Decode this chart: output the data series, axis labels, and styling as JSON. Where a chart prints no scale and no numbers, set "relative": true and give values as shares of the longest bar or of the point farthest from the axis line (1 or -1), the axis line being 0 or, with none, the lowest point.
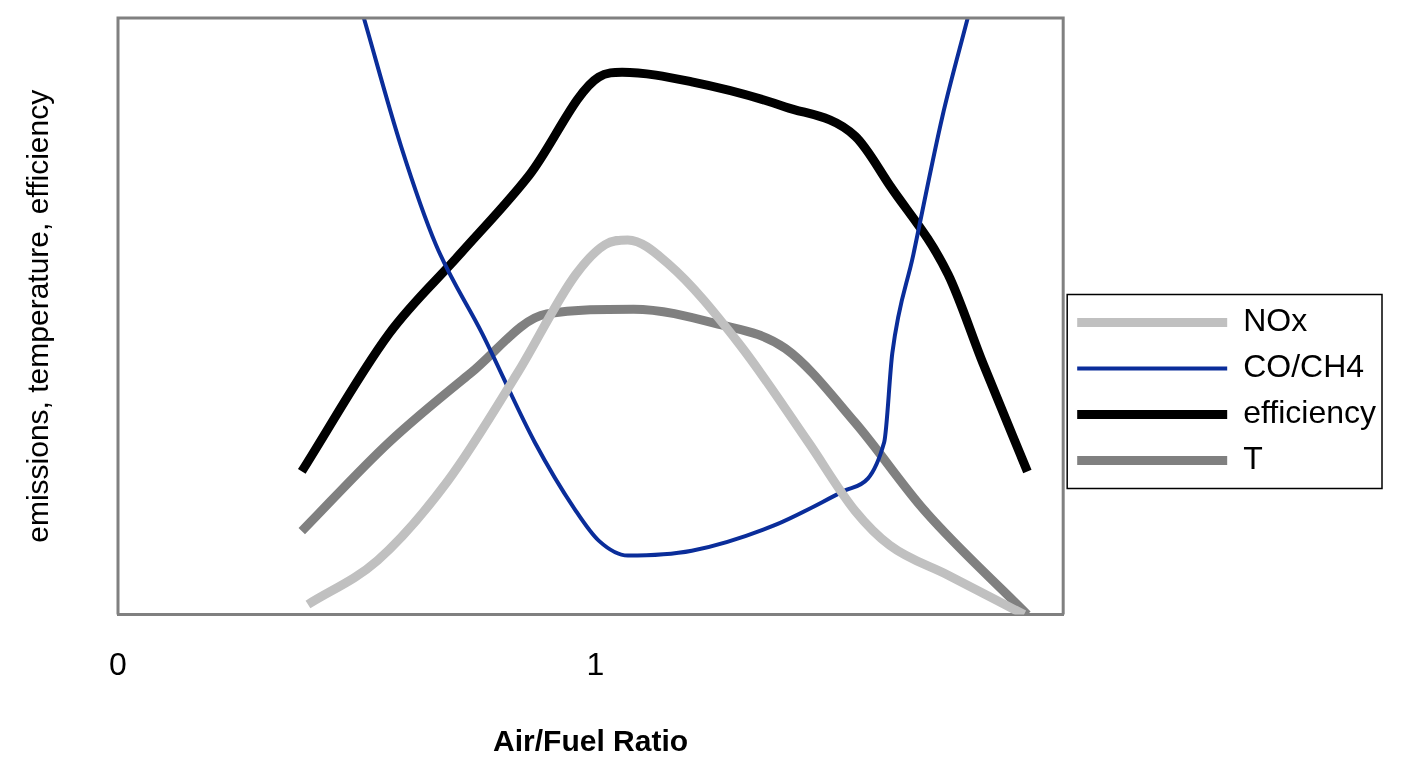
{
  "chart_data": {
    "type": "line",
    "xlabel": "Air/Fuel Ratio",
    "ylabel": "emissions, temperature, efficiency",
    "relative": true,
    "xlim": [
      0,
      1.98
    ],
    "xticks": [
      0,
      1
    ],
    "grid": false,
    "legend": "right",
    "marker": "none",
    "line_style": "solid",
    "series": [
      {
        "name": "NOx",
        "color": "#c0c0c0",
        "x": [
          0.398,
          0.544,
          0.69,
          0.837,
          0.959,
          1.02,
          1.068,
          1.154,
          1.3,
          1.446,
          1.544,
          1.617,
          1.739,
          1.898
        ],
        "values": [
          0.017,
          0.091,
          0.223,
          0.405,
          0.57,
          0.62,
          0.628,
          0.587,
          0.455,
          0.289,
          0.174,
          0.116,
          0.066,
          0
        ]
      },
      {
        "name": "CO/CH4",
        "color": "#0a2d9a",
        "x": [
          0.515,
          0.593,
          0.666,
          0.763,
          0.873,
          0.959,
          1.007,
          1.068,
          1.202,
          1.373,
          1.52,
          1.605,
          1.622,
          1.666,
          1.727,
          1.78
        ],
        "values": [
          1,
          0.785,
          0.62,
          0.471,
          0.289,
          0.174,
          0.124,
          0.099,
          0.107,
          0.149,
          0.207,
          0.289,
          0.438,
          0.603,
          0.835,
          1
        ]
      },
      {
        "name": "efficiency",
        "color": "#000000",
        "x": [
          0.385,
          0.568,
          0.715,
          0.861,
          1.007,
          1.056,
          1.202,
          1.398,
          1.544,
          1.617,
          1.739,
          1.812,
          1.905
        ],
        "values": [
          0.24,
          0.471,
          0.603,
          0.736,
          0.901,
          0.909,
          0.893,
          0.851,
          0.802,
          0.719,
          0.57,
          0.421,
          0.24
        ]
      },
      {
        "name": "T",
        "color": "#808080",
        "x": [
          0.385,
          0.568,
          0.739,
          0.898,
          1.08,
          1.251,
          1.398,
          1.544,
          1.69,
          1.905
        ],
        "values": [
          0.14,
          0.289,
          0.405,
          0.504,
          0.512,
          0.488,
          0.446,
          0.322,
          0.174,
          0
        ]
      }
    ]
  }
}
